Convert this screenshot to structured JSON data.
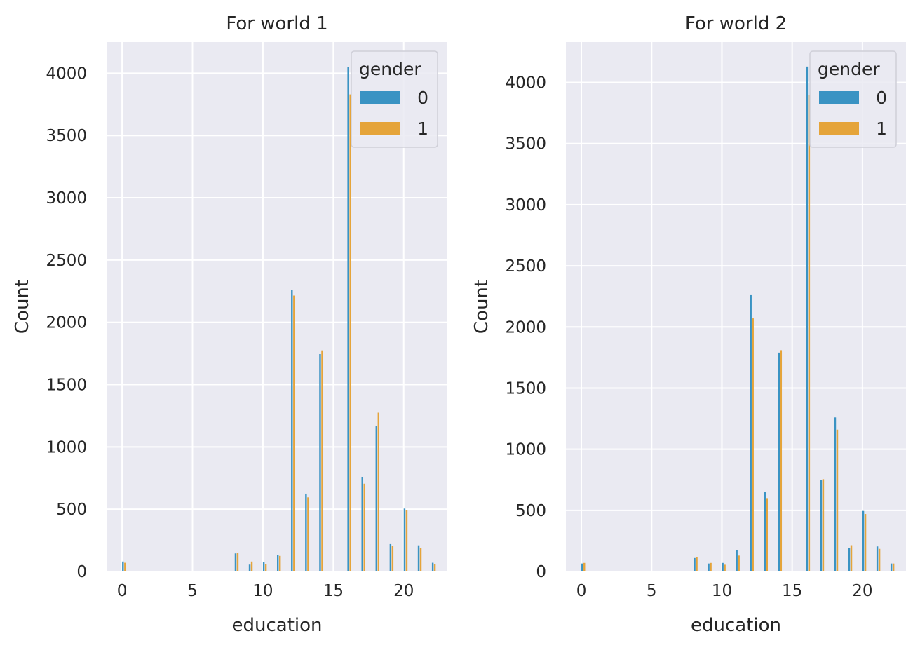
{
  "figure": {
    "colors": {
      "background": "#eaeaf2",
      "grid": "#ffffff",
      "text": "#262626",
      "series_0": "#3a93c3",
      "series_1": "#e5a43a"
    }
  },
  "chart_data": [
    {
      "type": "bar",
      "title": "For world 1",
      "xlabel": "education",
      "ylabel": "Count",
      "xlim": [
        -1.1,
        23.1
      ],
      "ylim": [
        0,
        4250
      ],
      "xticks": [
        "0",
        "5",
        "10",
        "15",
        "20"
      ],
      "yticks": [
        "0",
        "500",
        "1000",
        "1500",
        "2000",
        "2500",
        "3000",
        "3500",
        "4000"
      ],
      "grid": true,
      "legend": {
        "title": "gender",
        "placement": "top-right",
        "labels": [
          "0",
          "1"
        ]
      },
      "x": [
        0,
        8,
        9,
        10,
        11,
        12,
        13,
        14,
        16,
        17,
        18,
        19,
        20,
        21,
        22
      ],
      "series": [
        {
          "name": "0",
          "color": "#3a93c3",
          "values": [
            80,
            145,
            55,
            75,
            130,
            2260,
            625,
            1745,
            4050,
            760,
            1170,
            220,
            505,
            210,
            70
          ]
        },
        {
          "name": "1",
          "color": "#e5a43a",
          "values": [
            70,
            150,
            80,
            60,
            125,
            2215,
            595,
            1775,
            3830,
            705,
            1275,
            205,
            495,
            190,
            60
          ]
        }
      ]
    },
    {
      "type": "bar",
      "title": "For world 2",
      "xlabel": "education",
      "ylabel": "Count",
      "xlim": [
        -1.1,
        23.1
      ],
      "ylim": [
        0,
        4330
      ],
      "xticks": [
        "0",
        "5",
        "10",
        "15",
        "20"
      ],
      "yticks": [
        "0",
        "500",
        "1000",
        "1500",
        "2000",
        "2500",
        "3000",
        "3500",
        "4000"
      ],
      "grid": true,
      "legend": {
        "title": "gender",
        "placement": "top-right",
        "labels": [
          "0",
          "1"
        ]
      },
      "x": [
        0,
        8,
        9,
        10,
        11,
        12,
        13,
        14,
        16,
        17,
        18,
        19,
        20,
        21,
        22
      ],
      "series": [
        {
          "name": "0",
          "color": "#3a93c3",
          "values": [
            65,
            110,
            65,
            70,
            175,
            2260,
            650,
            1790,
            4130,
            750,
            1260,
            190,
            495,
            205,
            65
          ]
        },
        {
          "name": "1",
          "color": "#e5a43a",
          "values": [
            70,
            120,
            70,
            55,
            130,
            2070,
            600,
            1810,
            3895,
            755,
            1160,
            215,
            470,
            185,
            65
          ]
        }
      ]
    }
  ]
}
